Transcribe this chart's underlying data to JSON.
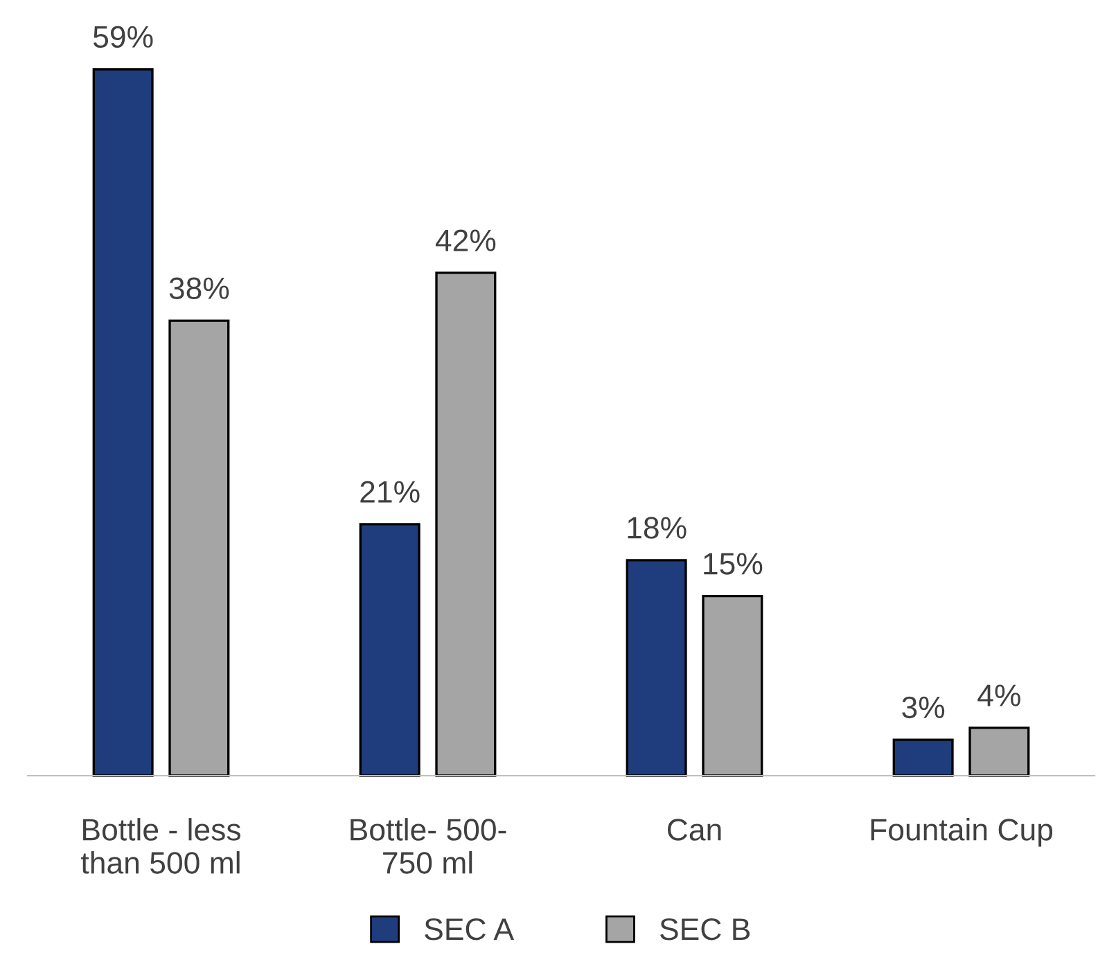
{
  "chart_data": {
    "type": "bar",
    "categories": [
      "Bottle - less\nthan 500 ml",
      "Bottle- 500-\n750 ml",
      "Can",
      "Fountain Cup"
    ],
    "series": [
      {
        "name": "SEC A",
        "color": "#1f3d7c",
        "values": [
          59,
          21,
          18,
          3
        ],
        "value_labels": [
          "59%",
          "21%",
          "18%",
          "3%"
        ]
      },
      {
        "name": "SEC B",
        "color": "#a5a5a5",
        "values": [
          38,
          42,
          15,
          4
        ],
        "value_labels": [
          "38%",
          "42%",
          "15%",
          "4%"
        ]
      }
    ],
    "legend": "bottom",
    "grid": false
  }
}
